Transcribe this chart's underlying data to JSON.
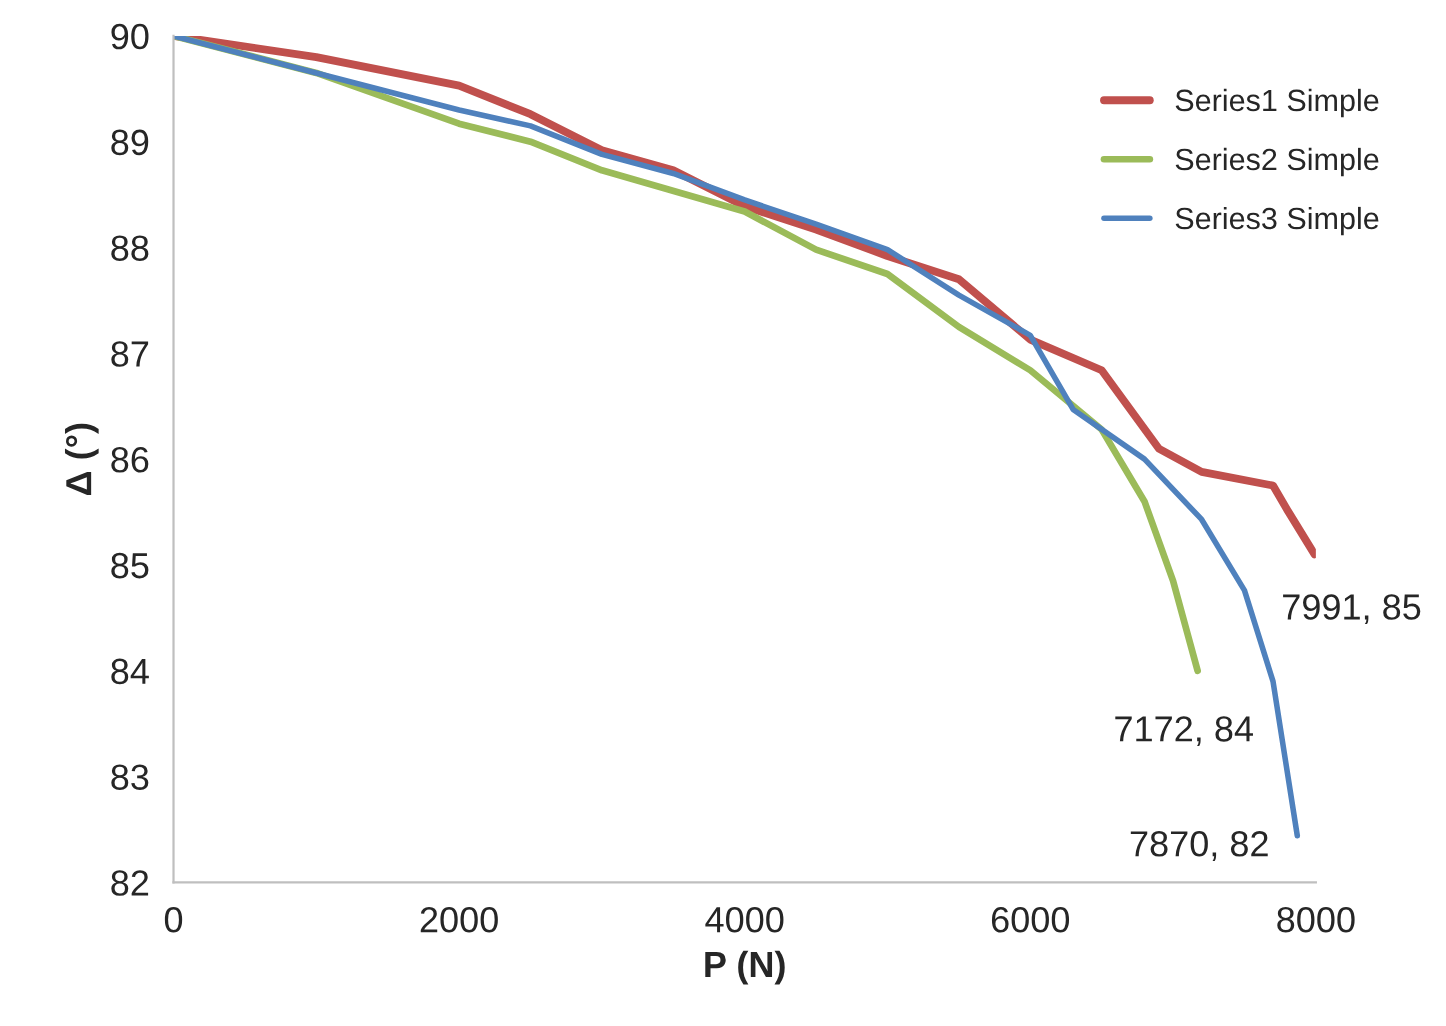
{
  "chart_data": {
    "type": "line",
    "xlabel": "P (N)",
    "ylabel": "Δ (°)",
    "xlim": [
      0,
      8000
    ],
    "xticks": [
      0,
      2000,
      4000,
      6000,
      8000
    ],
    "ylim": [
      82,
      90
    ],
    "yticks": [
      82,
      83,
      84,
      85,
      86,
      87,
      88,
      89,
      90
    ],
    "grid": false,
    "legend": "top right",
    "marker": "none",
    "line_style": "solid",
    "series": [
      {
        "name": "Series1 Simple",
        "color": "#c0504d",
        "x": [
          0,
          1000,
          2000,
          2500,
          3000,
          3500,
          4000,
          4500,
          5000,
          5500,
          6000,
          6500,
          6900,
          7200,
          7700,
          7800,
          7991
        ],
        "values": [
          90,
          89.8,
          89.53,
          89.26,
          88.92,
          88.73,
          88.39,
          88.17,
          87.92,
          87.7,
          87.13,
          86.84,
          86.1,
          85.88,
          85.75,
          85.52,
          85.1
        ]
      },
      {
        "name": "Series2 Simple",
        "color": "#9bbb59",
        "x": [
          0,
          1000,
          2000,
          2500,
          3000,
          4000,
          4500,
          5000,
          5500,
          6000,
          6500,
          6800,
          7000,
          7172
        ],
        "values": [
          90,
          89.65,
          89.17,
          89.0,
          88.73,
          88.34,
          87.98,
          87.75,
          87.25,
          86.84,
          86.28,
          85.6,
          84.85,
          84.0
        ]
      },
      {
        "name": "Series3 Simple",
        "color": "#4f81bd",
        "x": [
          0,
          1000,
          2000,
          2500,
          3000,
          3500,
          4000,
          4500,
          5000,
          5500,
          6000,
          6300,
          6800,
          7200,
          7500,
          7700,
          7870
        ],
        "values": [
          90,
          89.65,
          89.3,
          89.15,
          88.88,
          88.7,
          88.45,
          88.22,
          87.98,
          87.55,
          87.17,
          86.47,
          86.0,
          85.43,
          84.76,
          83.9,
          82.44
        ]
      }
    ],
    "annotations": [
      "7991, 85",
      "7172, 84",
      "7870, 82"
    ]
  }
}
